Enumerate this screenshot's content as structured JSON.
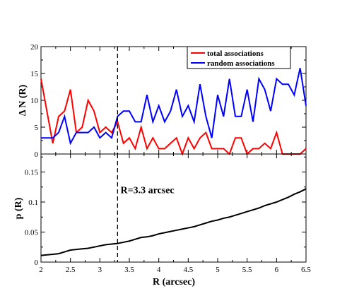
{
  "chart_data": [
    {
      "type": "line",
      "panel": "top",
      "ylabel": "Δ N (R)",
      "xlim": [
        2,
        6.5
      ],
      "ylim": [
        0,
        20
      ],
      "y_ticks": [
        "0",
        "5",
        "10",
        "15",
        "20"
      ],
      "legend_placement": "top-right",
      "series": [
        {
          "name": "total associations",
          "color": "#ff0000",
          "x": [
            2.0,
            2.1,
            2.2,
            2.3,
            2.4,
            2.5,
            2.6,
            2.7,
            2.8,
            2.9,
            3.0,
            3.1,
            3.2,
            3.3,
            3.4,
            3.5,
            3.6,
            3.7,
            3.8,
            3.9,
            4.0,
            4.1,
            4.2,
            4.3,
            4.4,
            4.5,
            4.6,
            4.7,
            4.8,
            4.9,
            5.0,
            5.1,
            5.2,
            5.3,
            5.4,
            5.5,
            5.6,
            5.7,
            5.8,
            5.9,
            6.0,
            6.1,
            6.2,
            6.3,
            6.4,
            6.5
          ],
          "values": [
            14,
            8,
            2,
            7,
            8,
            12,
            4,
            5,
            10,
            8,
            4,
            5,
            4,
            6,
            2,
            3,
            1,
            5,
            1,
            3,
            1,
            1,
            2,
            3,
            0,
            3,
            1,
            3,
            4,
            1,
            1,
            1,
            0,
            3,
            3,
            0,
            1,
            1,
            2,
            1,
            4,
            0,
            0,
            0,
            0,
            1
          ]
        },
        {
          "name": "random associations",
          "color": "#0000ff",
          "x": [
            2.0,
            2.1,
            2.2,
            2.3,
            2.4,
            2.5,
            2.6,
            2.7,
            2.8,
            2.9,
            3.0,
            3.1,
            3.2,
            3.3,
            3.4,
            3.5,
            3.6,
            3.7,
            3.8,
            3.9,
            4.0,
            4.1,
            4.2,
            4.3,
            4.4,
            4.5,
            4.6,
            4.7,
            4.8,
            4.9,
            5.0,
            5.1,
            5.2,
            5.3,
            5.4,
            5.5,
            5.6,
            5.7,
            5.8,
            5.9,
            6.0,
            6.1,
            6.2,
            6.3,
            6.4,
            6.5
          ],
          "values": [
            3,
            3,
            3,
            4,
            7,
            2,
            4,
            4,
            4,
            5,
            3,
            4,
            3,
            7,
            8,
            8,
            6,
            6,
            11,
            6,
            9,
            6,
            8,
            12,
            7,
            9,
            6,
            13,
            7,
            3,
            11,
            7,
            14,
            7,
            7,
            12,
            6,
            14,
            12,
            8,
            14,
            13,
            13,
            11,
            16,
            9
          ]
        }
      ],
      "annotations": [
        {
          "type": "vline",
          "x": 3.3
        }
      ]
    },
    {
      "type": "line",
      "panel": "bottom",
      "xlabel": "R (arcsec)",
      "ylabel": "p (R)",
      "xlim": [
        2,
        6.5
      ],
      "ylim": [
        0,
        0.18
      ],
      "x_ticks": [
        "2",
        "2.5",
        "3",
        "3.5",
        "4",
        "4.5",
        "5",
        "5.5",
        "6",
        "6.5"
      ],
      "y_ticks": [
        "0",
        "0.05",
        "0.1",
        "0.15"
      ],
      "series": [
        {
          "color": "#000000",
          "x": [
            2.0,
            2.1,
            2.2,
            2.3,
            2.4,
            2.5,
            2.6,
            2.7,
            2.8,
            2.9,
            3.0,
            3.1,
            3.2,
            3.3,
            3.4,
            3.5,
            3.6,
            3.7,
            3.8,
            3.9,
            4.0,
            4.1,
            4.2,
            4.3,
            4.4,
            4.5,
            4.6,
            4.7,
            4.8,
            4.9,
            5.0,
            5.1,
            5.2,
            5.3,
            5.4,
            5.5,
            5.6,
            5.7,
            5.8,
            5.9,
            6.0,
            6.1,
            6.2,
            6.3,
            6.4,
            6.5
          ],
          "values": [
            0.011,
            0.012,
            0.013,
            0.014,
            0.017,
            0.02,
            0.021,
            0.022,
            0.023,
            0.025,
            0.027,
            0.029,
            0.03,
            0.031,
            0.033,
            0.035,
            0.038,
            0.041,
            0.042,
            0.044,
            0.047,
            0.049,
            0.051,
            0.053,
            0.055,
            0.057,
            0.059,
            0.062,
            0.065,
            0.068,
            0.07,
            0.073,
            0.075,
            0.078,
            0.081,
            0.084,
            0.087,
            0.09,
            0.094,
            0.097,
            0.1,
            0.104,
            0.108,
            0.113,
            0.117,
            0.122
          ]
        }
      ],
      "annotations": [
        {
          "type": "vline",
          "x": 3.3,
          "label": "R=3.3 arcsec",
          "label_x": 3.35,
          "label_y": 0.115
        }
      ]
    }
  ]
}
